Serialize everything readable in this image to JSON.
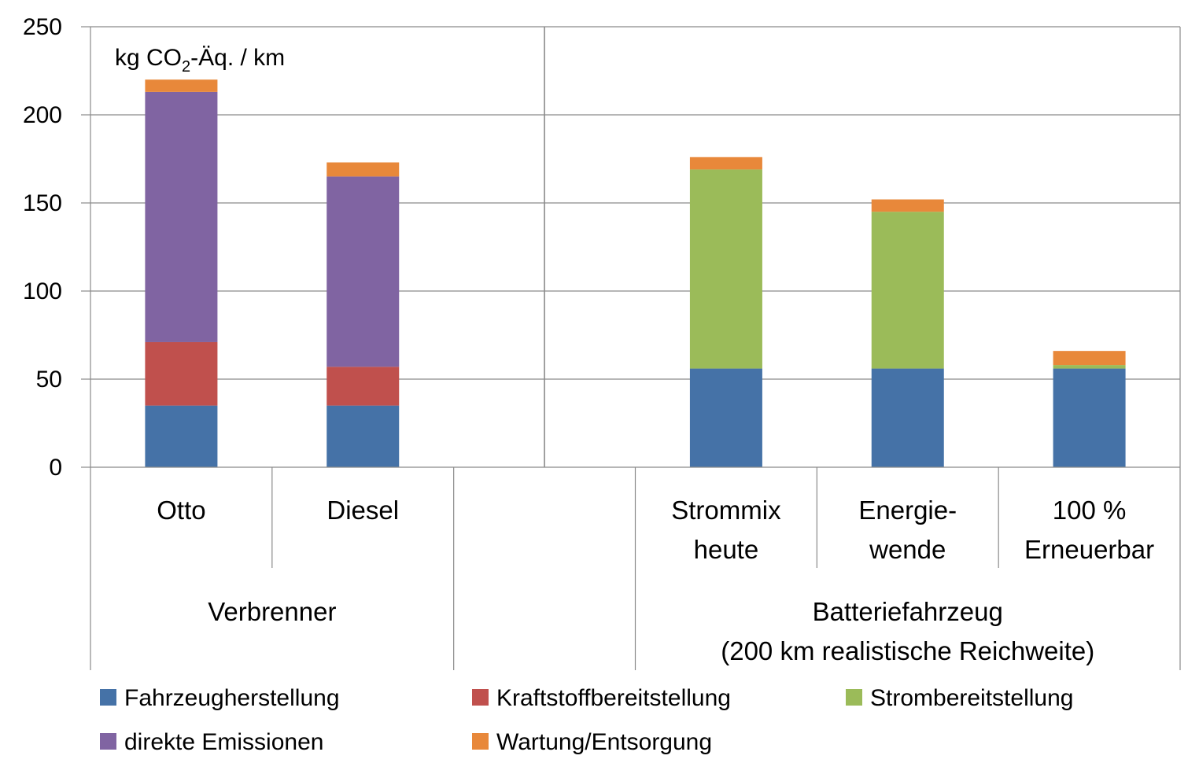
{
  "chart_data": {
    "type": "bar",
    "stacked": true,
    "unit_label": {
      "pre": "kg CO",
      "sub": "2",
      "post": "-Äq. / km"
    },
    "ylim": [
      0,
      250
    ],
    "yticks": [
      0,
      50,
      100,
      150,
      200,
      250
    ],
    "grid": true,
    "legend_position": "bottom",
    "groups": [
      {
        "label": "Verbrenner",
        "lines": [
          "Verbrenner"
        ]
      },
      {
        "label": "Batteriefahrzeug (200 km realistische Reichweite)",
        "lines": [
          "Batteriefahrzeug",
          "(200 km realistische Reichweite)"
        ]
      }
    ],
    "categories": [
      {
        "label": "Otto",
        "lines": [
          "Otto"
        ],
        "group": 0
      },
      {
        "label": "Diesel",
        "lines": [
          "Diesel"
        ],
        "group": 0
      },
      {
        "label": "",
        "lines": [],
        "group": 0
      },
      {
        "label": "Strommix heute",
        "lines": [
          "Strommix",
          "heute"
        ],
        "group": 1
      },
      {
        "label": "Energiewende",
        "lines": [
          "Energie-",
          "wende"
        ],
        "group": 1
      },
      {
        "label": "100 % Erneuerbar",
        "lines": [
          "100 %",
          "Erneuerbar"
        ],
        "group": 1
      }
    ],
    "series": [
      {
        "name": "Fahrzeugherstellung",
        "color": "#4572A7",
        "values": [
          35,
          35,
          null,
          56,
          56,
          56
        ]
      },
      {
        "name": "Kraftstoffbereitstellung",
        "color": "#C0504D",
        "values": [
          36,
          22,
          null,
          0,
          0,
          0
        ]
      },
      {
        "name": "Strombereitstellung",
        "color": "#9BBB59",
        "values": [
          0,
          0,
          null,
          113,
          89,
          2
        ]
      },
      {
        "name": "direkte Emissionen",
        "color": "#8064A2",
        "values": [
          142,
          108,
          null,
          0,
          0,
          0
        ]
      },
      {
        "name": "Wartung/Entsorgung",
        "color": "#E8883A",
        "values": [
          7,
          8,
          null,
          7,
          7,
          8
        ]
      }
    ]
  }
}
